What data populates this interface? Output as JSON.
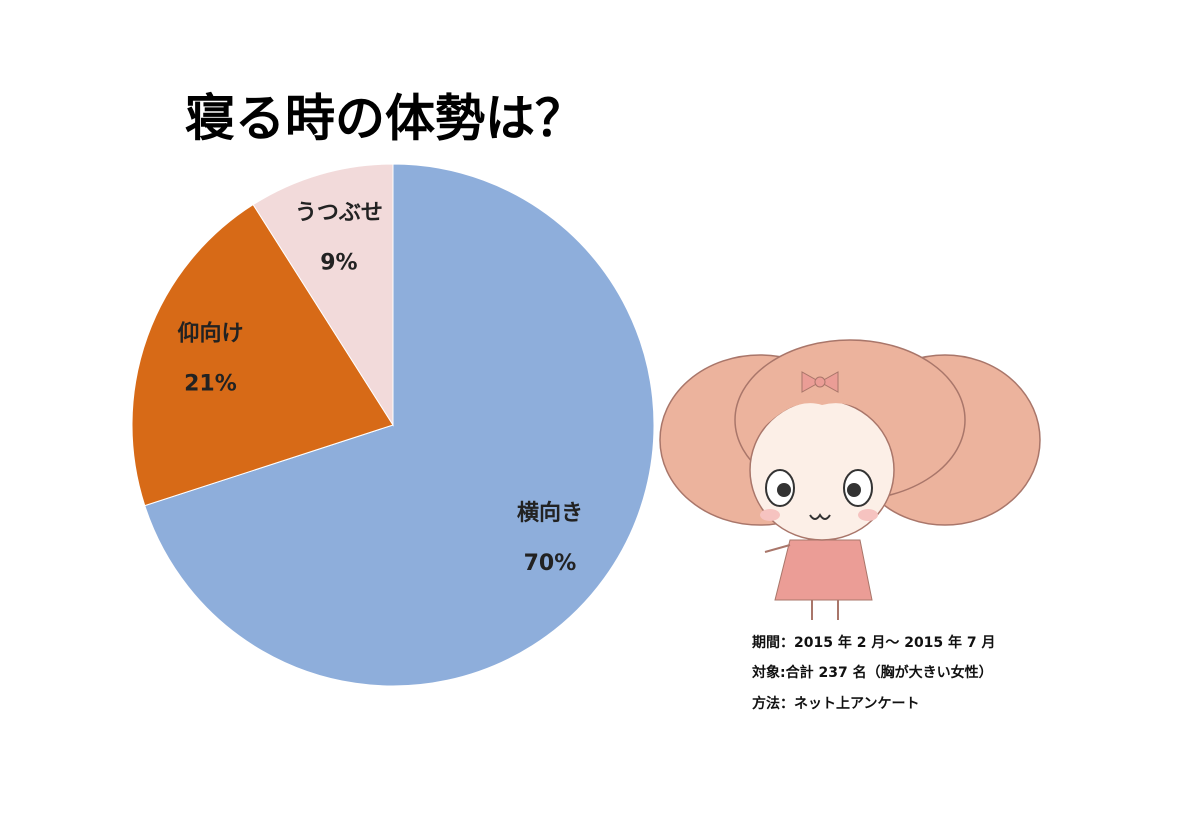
{
  "chart_data": {
    "type": "pie",
    "title": "寝る時の体勢は？",
    "categories": [
      "横向き",
      "仰向け",
      "うつぶせ"
    ],
    "values": [
      70,
      21,
      9
    ],
    "value_labels": [
      "70%",
      "21%",
      "9%"
    ],
    "colors": [
      "#8eaedb",
      "#d76a17",
      "#f2dada"
    ]
  },
  "notes": [
    "期間：2015 年 2 月〜 2015 年 7 月",
    "対象:合計 237 名（胸が大きい女性）",
    "方法：ネット上アンケート"
  ]
}
